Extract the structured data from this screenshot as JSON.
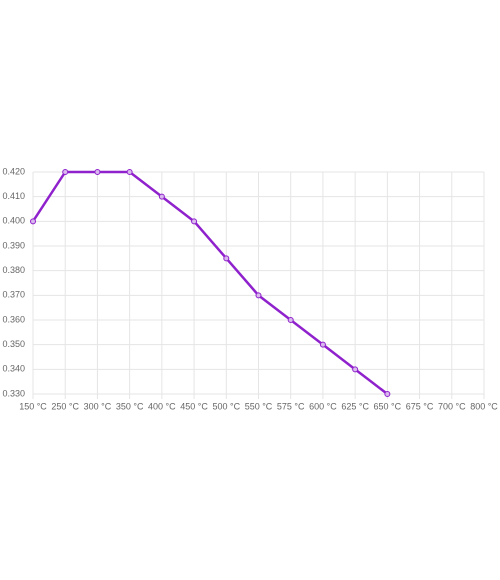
{
  "chart_data": {
    "type": "line",
    "categories": [
      "150 °C",
      "250 °C",
      "300 °C",
      "350 °C",
      "400 °C",
      "450 °C",
      "500 °C",
      "550 °C",
      "575 °C",
      "600 °C",
      "625 °C",
      "650 °C",
      "675 °C",
      "700 °C",
      "800 °C"
    ],
    "values": [
      0.4,
      0.42,
      0.42,
      0.42,
      0.41,
      0.4,
      0.385,
      0.37,
      0.36,
      0.35,
      0.34,
      0.33,
      null,
      null,
      null
    ],
    "color": "#8f22cc",
    "ylim": [
      0.33,
      0.42
    ],
    "yticks": [
      {
        "value": 0.33,
        "label": "0.330"
      },
      {
        "value": 0.34,
        "label": "0.340"
      },
      {
        "value": 0.35,
        "label": "0.350"
      },
      {
        "value": 0.36,
        "label": "0.360"
      },
      {
        "value": 0.37,
        "label": "0.370"
      },
      {
        "value": 0.38,
        "label": "0.380"
      },
      {
        "value": 0.39,
        "label": "0.390"
      },
      {
        "value": 0.4,
        "label": "0.400"
      },
      {
        "value": 0.41,
        "label": "0.410"
      },
      {
        "value": 0.42,
        "label": "0.420"
      }
    ],
    "grid": true
  }
}
